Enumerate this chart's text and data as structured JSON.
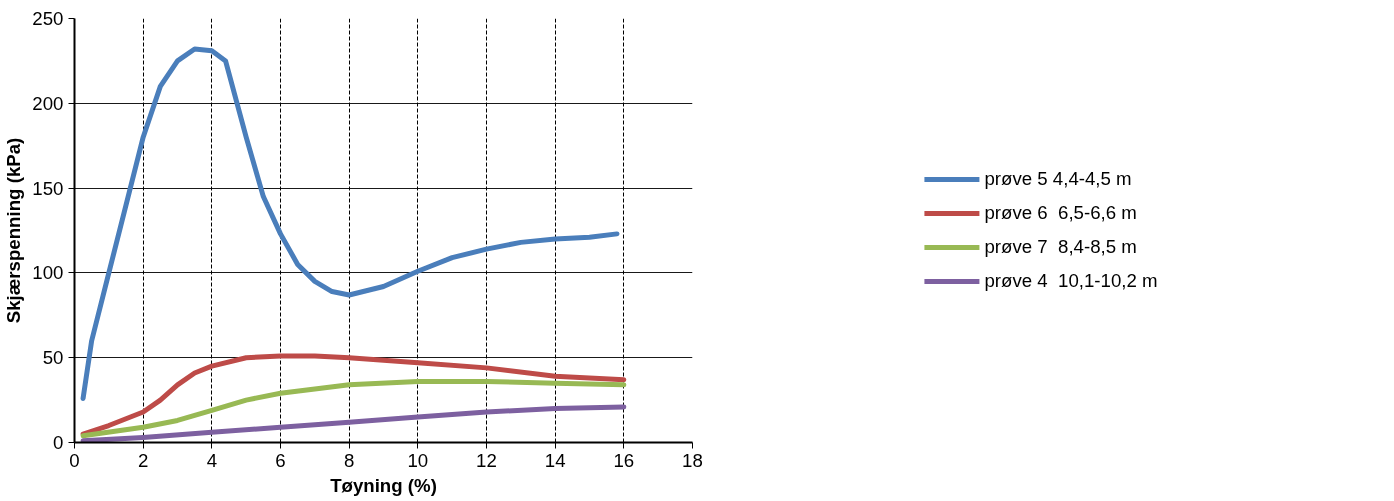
{
  "chart_data": {
    "type": "line",
    "xlabel": "Tøyning (%)",
    "ylabel": "Skjærspenning (kPa)",
    "xlim": [
      0,
      18
    ],
    "xticks": [
      0,
      2,
      4,
      6,
      8,
      10,
      12,
      14,
      16,
      18
    ],
    "ylim": [
      0,
      250
    ],
    "yticks": [
      0,
      50,
      100,
      150,
      200,
      250
    ],
    "grid": true,
    "legend": "right",
    "marker": "none",
    "line_style": "solid",
    "series": [
      {
        "name": "prøve 5 4,4-4,5 m",
        "color": "#4a7ebb",
        "x": [
          0.25,
          0.5,
          1,
          1.5,
          2,
          2.5,
          3,
          3.5,
          4,
          4.4,
          5,
          5.5,
          6,
          6.5,
          7,
          7.5,
          8,
          9,
          10,
          11,
          12,
          13,
          14,
          15,
          15.8
        ],
        "values": [
          26,
          60,
          100,
          140,
          180,
          210,
          225,
          232,
          231,
          225,
          180,
          145,
          123,
          105,
          95,
          89,
          87,
          92,
          101,
          109,
          114,
          118,
          120,
          121,
          123
        ]
      },
      {
        "name": "prøve 6  6,5-6,6 m",
        "color": "#be4b48",
        "x": [
          0.25,
          1,
          2,
          2.5,
          3,
          3.5,
          4,
          5,
          6,
          7,
          8,
          10,
          12,
          14,
          16
        ],
        "values": [
          5,
          10,
          18,
          25,
          34,
          41,
          45,
          50,
          51,
          51,
          50,
          47,
          44,
          39,
          37
        ]
      },
      {
        "name": "prøve 7  8,4-8,5 m",
        "color": "#98b954",
        "x": [
          0.25,
          2,
          3,
          4,
          5,
          6,
          8,
          10,
          12,
          14,
          16
        ],
        "values": [
          4,
          9,
          13,
          19,
          25,
          29,
          34,
          36,
          36,
          35,
          34
        ]
      },
      {
        "name": "prøve 4  10,1-10,2 m",
        "color": "#7d60a0",
        "x": [
          0.25,
          2,
          4,
          6,
          8,
          10,
          12,
          14,
          16
        ],
        "values": [
          1,
          3,
          6,
          9,
          12,
          15,
          18,
          20,
          21
        ]
      }
    ]
  }
}
